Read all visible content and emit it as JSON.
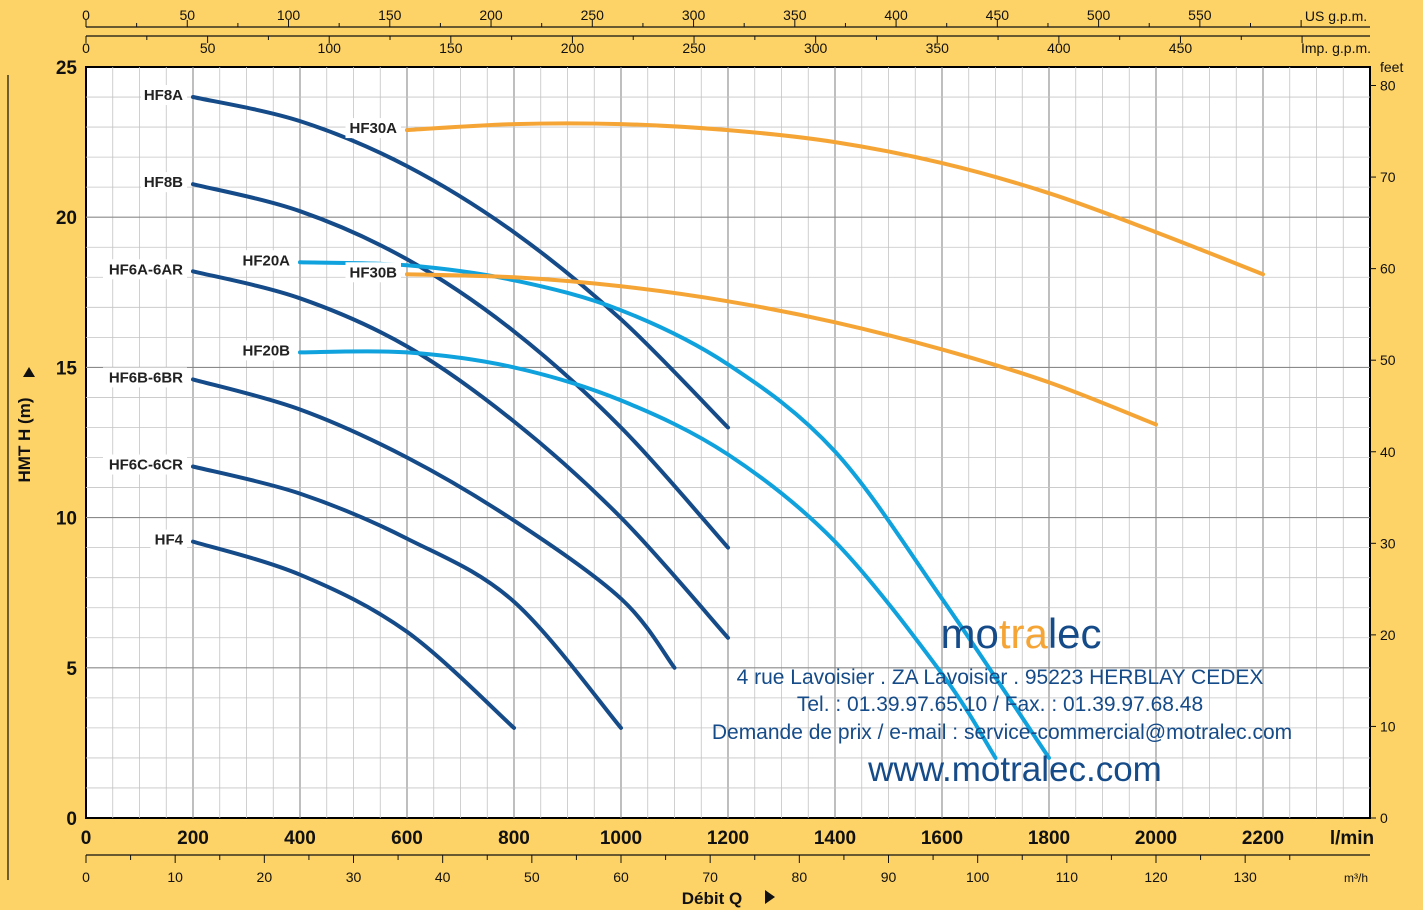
{
  "chart_data": {
    "type": "line",
    "title": "",
    "xlabel": "Débit  Q",
    "ylabel": "HMT  H  (m)",
    "x_unit": "l/min",
    "y2_unit": "feet",
    "xlim": [
      0,
      2400
    ],
    "ylim": [
      0,
      25
    ],
    "grid": true,
    "x_ticks": [
      0,
      200,
      400,
      600,
      800,
      1000,
      1200,
      1400,
      1600,
      1800,
      2000,
      2200
    ],
    "y_ticks": [
      0,
      5,
      10,
      15,
      20,
      25
    ],
    "feet_ticks": [
      0,
      10,
      20,
      30,
      40,
      50,
      60,
      70,
      80
    ],
    "m3h_ticks": [
      0,
      10,
      20,
      30,
      40,
      50,
      60,
      70,
      80,
      90,
      100,
      110,
      120,
      130
    ],
    "m3h_unit": "m³/h",
    "usgpm_ticks": [
      0,
      50,
      100,
      150,
      200,
      250,
      300,
      350,
      400,
      450,
      500,
      550
    ],
    "usgpm_unit": "US g.p.m.",
    "impgpm_ticks": [
      0,
      50,
      100,
      150,
      200,
      250,
      300,
      350,
      400,
      450
    ],
    "impgpm_unit": "Imp. g.p.m.",
    "series": [
      {
        "name": "HF8A",
        "color": "#154b88",
        "points": [
          [
            200,
            24.0
          ],
          [
            400,
            23.2
          ],
          [
            600,
            21.7
          ],
          [
            800,
            19.5
          ],
          [
            1000,
            16.6
          ],
          [
            1200,
            13.0
          ]
        ]
      },
      {
        "name": "HF8B",
        "color": "#154b88",
        "points": [
          [
            200,
            21.1
          ],
          [
            400,
            20.2
          ],
          [
            600,
            18.6
          ],
          [
            800,
            16.2
          ],
          [
            1000,
            13.0
          ],
          [
            1200,
            9.0
          ]
        ]
      },
      {
        "name": "HF6A-6AR",
        "color": "#154b88",
        "points": [
          [
            200,
            18.2
          ],
          [
            400,
            17.3
          ],
          [
            600,
            15.7
          ],
          [
            800,
            13.2
          ],
          [
            1000,
            10.0
          ],
          [
            1200,
            6.0
          ]
        ]
      },
      {
        "name": "HF6B-6BR",
        "color": "#154b88",
        "points": [
          [
            200,
            14.6
          ],
          [
            400,
            13.6
          ],
          [
            600,
            12.0
          ],
          [
            800,
            9.9
          ],
          [
            1000,
            7.3
          ],
          [
            1100,
            5.0
          ]
        ]
      },
      {
        "name": "HF6C-6CR",
        "color": "#154b88",
        "points": [
          [
            200,
            11.7
          ],
          [
            400,
            10.8
          ],
          [
            600,
            9.3
          ],
          [
            800,
            7.2
          ],
          [
            1000,
            3.0
          ]
        ]
      },
      {
        "name": "HF4",
        "color": "#154b88",
        "points": [
          [
            200,
            9.2
          ],
          [
            400,
            8.1
          ],
          [
            600,
            6.2
          ],
          [
            800,
            3.0
          ]
        ]
      },
      {
        "name": "HF20A",
        "color": "#0fa2dd",
        "points": [
          [
            400,
            18.5
          ],
          [
            600,
            18.4
          ],
          [
            800,
            17.9
          ],
          [
            1000,
            16.9
          ],
          [
            1200,
            15.1
          ],
          [
            1400,
            12.2
          ],
          [
            1600,
            7.3
          ],
          [
            1800,
            2.0
          ]
        ]
      },
      {
        "name": "HF20B",
        "color": "#0fa2dd",
        "points": [
          [
            400,
            15.5
          ],
          [
            600,
            15.5
          ],
          [
            800,
            15.0
          ],
          [
            1000,
            13.9
          ],
          [
            1200,
            12.1
          ],
          [
            1400,
            9.2
          ],
          [
            1600,
            4.8
          ],
          [
            1700,
            2.0
          ]
        ]
      },
      {
        "name": "HF30A",
        "color": "#f5a535",
        "points": [
          [
            600,
            22.9
          ],
          [
            800,
            23.1
          ],
          [
            1000,
            23.1
          ],
          [
            1200,
            22.9
          ],
          [
            1400,
            22.5
          ],
          [
            1600,
            21.8
          ],
          [
            1800,
            20.8
          ],
          [
            2000,
            19.5
          ],
          [
            2200,
            18.1
          ]
        ]
      },
      {
        "name": "HF30B",
        "color": "#f5a535",
        "points": [
          [
            600,
            18.1
          ],
          [
            800,
            18.0
          ],
          [
            1000,
            17.7
          ],
          [
            1200,
            17.2
          ],
          [
            1400,
            16.5
          ],
          [
            1600,
            15.6
          ],
          [
            1800,
            14.5
          ],
          [
            2000,
            13.1
          ]
        ]
      }
    ]
  },
  "watermark": {
    "brand_a": "mo",
    "brand_b": "tra",
    "brand_c": "lec",
    "address": "4 rue Lavoisier . ZA Lavoisier . 95223 HERBLAY CEDEX",
    "phone": "Tel. : 01.39.97.65.10 / Fax. : 01.39.97.68.48",
    "email": "Demande de prix / e-mail : service-commercial@motralec.com",
    "website": "www.motralec.com",
    "brand_color": "#154b88",
    "accent_color": "#f5a535"
  }
}
